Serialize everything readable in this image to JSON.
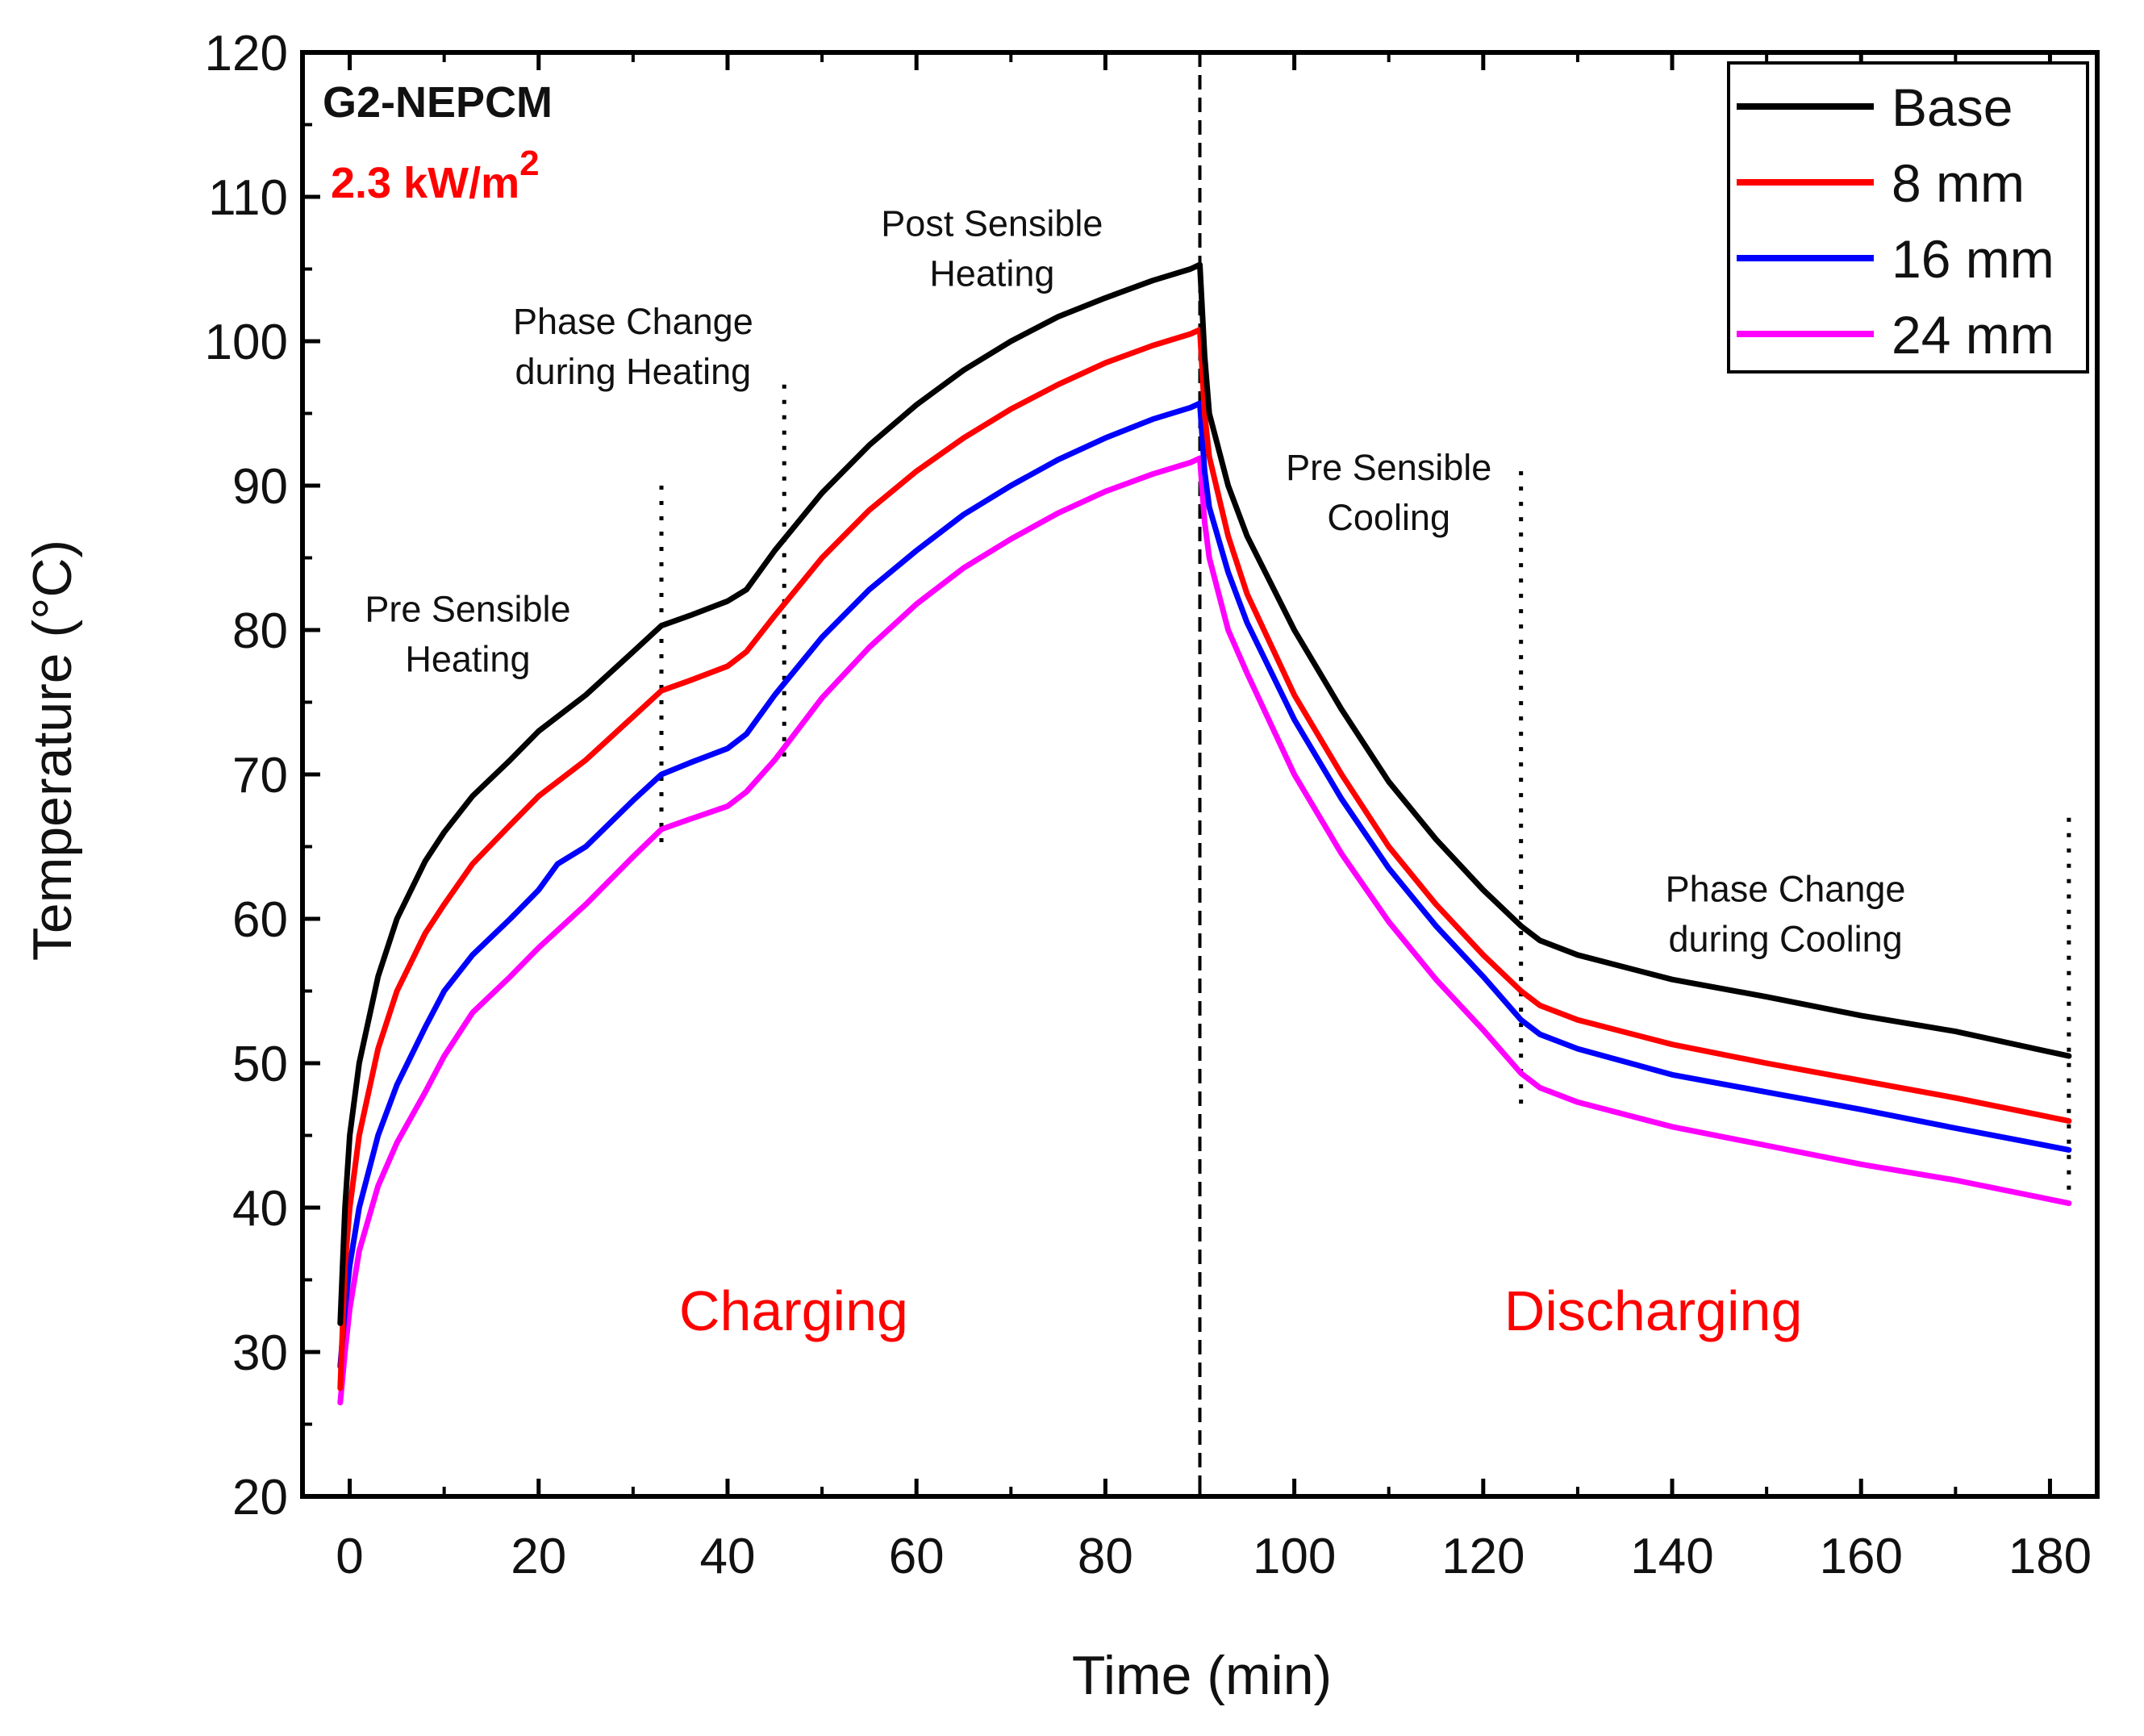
{
  "chart_data": {
    "type": "line",
    "title": "G2-NEPCM",
    "subtitle_prefix": "2.3 kW/m",
    "subtitle_superscript": "2",
    "xlabel": "Time (min)",
    "ylabel": "Temperature (°C)",
    "xlim": [
      -5,
      185
    ],
    "ylim": [
      20,
      120
    ],
    "xticks": [
      "0",
      "20",
      "40",
      "60",
      "80",
      "100",
      "120",
      "140",
      "160",
      "180"
    ],
    "yticks": [
      "20",
      "30",
      "40",
      "50",
      "60",
      "70",
      "80",
      "90",
      "100",
      "110",
      "120"
    ],
    "legend_position": "top-right",
    "series": [
      {
        "name": "Base",
        "color": "#000000",
        "points": [
          [
            -1,
            32
          ],
          [
            -0.5,
            40
          ],
          [
            0,
            45
          ],
          [
            1,
            50
          ],
          [
            3,
            56
          ],
          [
            5,
            60
          ],
          [
            8,
            64
          ],
          [
            10,
            66
          ],
          [
            13,
            68.5
          ],
          [
            17,
            71
          ],
          [
            20,
            73
          ],
          [
            25,
            75.5
          ],
          [
            30,
            78.5
          ],
          [
            33,
            80.3
          ],
          [
            36,
            81
          ],
          [
            40,
            82
          ],
          [
            42,
            82.8
          ],
          [
            45,
            85.5
          ],
          [
            50,
            89.5
          ],
          [
            55,
            92.8
          ],
          [
            60,
            95.6
          ],
          [
            65,
            98
          ],
          [
            70,
            100
          ],
          [
            75,
            101.7
          ],
          [
            80,
            103
          ],
          [
            85,
            104.2
          ],
          [
            89,
            105
          ],
          [
            90,
            105.3
          ],
          [
            90.5,
            99
          ],
          [
            91,
            95
          ],
          [
            93,
            90
          ],
          [
            95,
            86.5
          ],
          [
            100,
            80
          ],
          [
            105,
            74.5
          ],
          [
            110,
            69.5
          ],
          [
            115,
            65.5
          ],
          [
            120,
            62
          ],
          [
            124,
            59.5
          ],
          [
            126,
            58.5
          ],
          [
            130,
            57.5
          ],
          [
            140,
            55.8
          ],
          [
            150,
            54.6
          ],
          [
            160,
            53.3
          ],
          [
            170,
            52.2
          ],
          [
            182,
            50.5
          ]
        ]
      },
      {
        "name": "8 mm",
        "color": "#ff0000",
        "points": [
          [
            -1,
            27.5
          ],
          [
            -0.5,
            36
          ],
          [
            0,
            40
          ],
          [
            1,
            45
          ],
          [
            3,
            51
          ],
          [
            5,
            55
          ],
          [
            8,
            59
          ],
          [
            10,
            61
          ],
          [
            13,
            63.8
          ],
          [
            17,
            66.5
          ],
          [
            20,
            68.5
          ],
          [
            25,
            71
          ],
          [
            30,
            74
          ],
          [
            33,
            75.8
          ],
          [
            36,
            76.5
          ],
          [
            40,
            77.5
          ],
          [
            42,
            78.5
          ],
          [
            45,
            81
          ],
          [
            50,
            85
          ],
          [
            55,
            88.3
          ],
          [
            60,
            91
          ],
          [
            65,
            93.3
          ],
          [
            70,
            95.3
          ],
          [
            75,
            97
          ],
          [
            80,
            98.5
          ],
          [
            85,
            99.7
          ],
          [
            89,
            100.5
          ],
          [
            90,
            100.8
          ],
          [
            90.5,
            95
          ],
          [
            91,
            92
          ],
          [
            93,
            86.5
          ],
          [
            95,
            82.5
          ],
          [
            100,
            75.5
          ],
          [
            105,
            70
          ],
          [
            110,
            65
          ],
          [
            115,
            61
          ],
          [
            120,
            57.5
          ],
          [
            124,
            55
          ],
          [
            126,
            54
          ],
          [
            130,
            53
          ],
          [
            140,
            51.3
          ],
          [
            150,
            50
          ],
          [
            160,
            48.8
          ],
          [
            170,
            47.6
          ],
          [
            182,
            46
          ]
        ]
      },
      {
        "name": "16 mm",
        "color": "#0000ff",
        "points": [
          [
            -1,
            29
          ],
          [
            -0.5,
            33
          ],
          [
            0,
            36
          ],
          [
            1,
            40
          ],
          [
            3,
            45
          ],
          [
            5,
            48.5
          ],
          [
            8,
            52.5
          ],
          [
            10,
            55
          ],
          [
            13,
            57.5
          ],
          [
            17,
            60
          ],
          [
            20,
            62
          ],
          [
            22,
            63.8
          ],
          [
            25,
            65
          ],
          [
            30,
            68.2
          ],
          [
            33,
            70
          ],
          [
            36,
            70.8
          ],
          [
            40,
            71.8
          ],
          [
            42,
            72.8
          ],
          [
            45,
            75.5
          ],
          [
            50,
            79.5
          ],
          [
            55,
            82.8
          ],
          [
            60,
            85.5
          ],
          [
            65,
            88
          ],
          [
            70,
            90
          ],
          [
            75,
            91.8
          ],
          [
            80,
            93.3
          ],
          [
            85,
            94.6
          ],
          [
            89,
            95.4
          ],
          [
            90,
            95.7
          ],
          [
            90.5,
            91
          ],
          [
            91,
            88.5
          ],
          [
            93,
            84
          ],
          [
            95,
            80.5
          ],
          [
            100,
            73.8
          ],
          [
            105,
            68.3
          ],
          [
            110,
            63.5
          ],
          [
            115,
            59.5
          ],
          [
            120,
            56
          ],
          [
            124,
            53
          ],
          [
            126,
            52
          ],
          [
            130,
            51
          ],
          [
            140,
            49.2
          ],
          [
            150,
            48
          ],
          [
            160,
            46.8
          ],
          [
            170,
            45.5
          ],
          [
            182,
            44
          ]
        ]
      },
      {
        "name": "24 mm",
        "color": "#ff00ff",
        "points": [
          [
            -1,
            26.5
          ],
          [
            -0.5,
            30
          ],
          [
            0,
            33
          ],
          [
            1,
            37
          ],
          [
            3,
            41.5
          ],
          [
            5,
            44.5
          ],
          [
            8,
            48
          ],
          [
            10,
            50.5
          ],
          [
            13,
            53.5
          ],
          [
            17,
            56
          ],
          [
            20,
            58
          ],
          [
            25,
            61
          ],
          [
            30,
            64.3
          ],
          [
            33,
            66.2
          ],
          [
            36,
            66.9
          ],
          [
            40,
            67.8
          ],
          [
            42,
            68.8
          ],
          [
            45,
            71
          ],
          [
            50,
            75.3
          ],
          [
            55,
            78.8
          ],
          [
            60,
            81.8
          ],
          [
            65,
            84.3
          ],
          [
            70,
            86.3
          ],
          [
            75,
            88.1
          ],
          [
            80,
            89.6
          ],
          [
            85,
            90.8
          ],
          [
            89,
            91.6
          ],
          [
            90,
            91.9
          ],
          [
            90.5,
            87.5
          ],
          [
            91,
            85
          ],
          [
            93,
            80
          ],
          [
            95,
            77
          ],
          [
            100,
            70
          ],
          [
            105,
            64.5
          ],
          [
            110,
            59.8
          ],
          [
            115,
            55.8
          ],
          [
            120,
            52.3
          ],
          [
            124,
            49.3
          ],
          [
            126,
            48.3
          ],
          [
            130,
            47.3
          ],
          [
            140,
            45.6
          ],
          [
            150,
            44.3
          ],
          [
            160,
            43
          ],
          [
            170,
            41.9
          ],
          [
            182,
            40.3
          ]
        ]
      }
    ],
    "dividers": [
      {
        "x": 90,
        "style": "dashed",
        "y_from": 20,
        "y_to": 120
      },
      {
        "x": 33,
        "style": "dotted",
        "y_from": 65,
        "y_to": 90
      },
      {
        "x": 46,
        "style": "dotted",
        "y_from": 71,
        "y_to": 97
      },
      {
        "x": 124,
        "style": "dotted",
        "y_from": 47,
        "y_to": 91
      },
      {
        "x": 182,
        "style": "dotted",
        "y_from": 40,
        "y_to": 67
      }
    ],
    "annotations": [
      {
        "lines": [
          "Pre Sensible",
          "Heating"
        ],
        "x": 12.5,
        "y": 80.6
      },
      {
        "lines": [
          "Phase Change",
          "during Heating"
        ],
        "x": 30,
        "y": 100.5
      },
      {
        "lines": [
          "Post Sensible",
          "Heating"
        ],
        "x": 68,
        "y": 107.3
      },
      {
        "lines": [
          "Pre Sensible",
          "Cooling"
        ],
        "x": 110,
        "y": 90.4
      },
      {
        "lines": [
          "Phase Change",
          "during Cooling"
        ],
        "x": 152,
        "y": 61.2
      }
    ],
    "phase_labels": [
      {
        "text": "Charging",
        "x": 47,
        "y": 31.5,
        "color": "#ff0000"
      },
      {
        "text": "Discharging",
        "x": 138,
        "y": 31.5,
        "color": "#ff0000"
      }
    ],
    "label_colors": {
      "title": "#111111",
      "subtitle": "#ff0000"
    }
  }
}
